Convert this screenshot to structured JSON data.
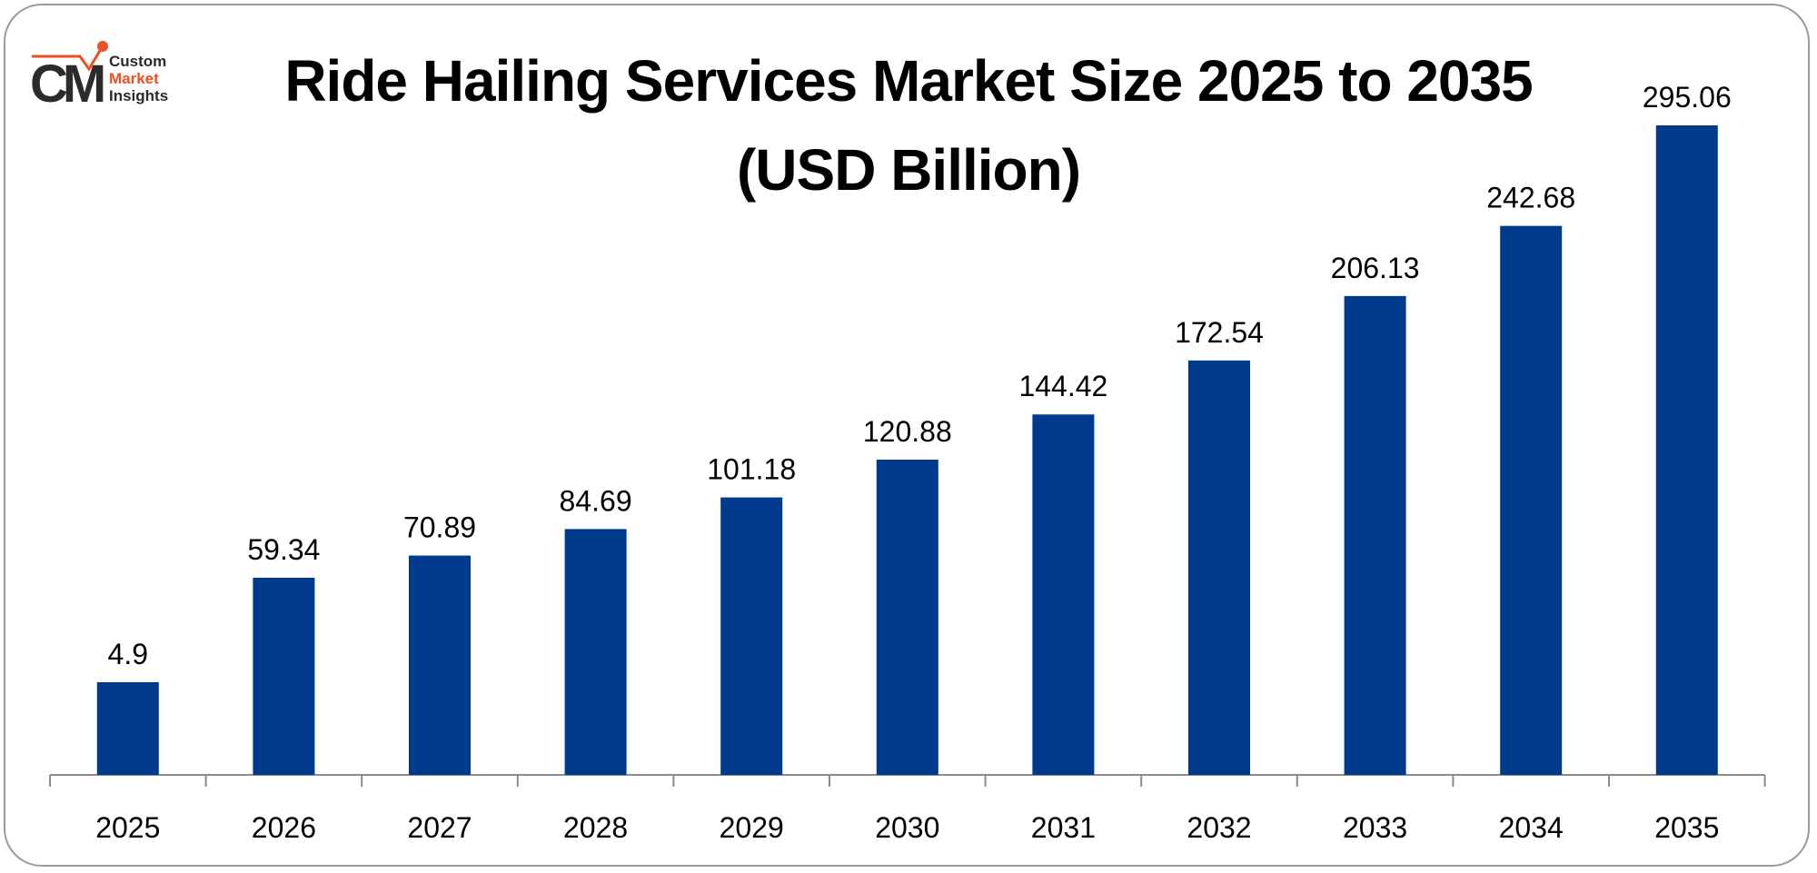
{
  "logo": {
    "line1": "Custom",
    "line2": "Market",
    "line3": "Insights",
    "mark": "CMI"
  },
  "chart_data": {
    "type": "bar",
    "title": "Ride Hailing Services Market Size 2025 to 2035",
    "subtitle": "(USD Billion)",
    "categories": [
      "2025",
      "2026",
      "2027",
      "2028",
      "2029",
      "2030",
      "2031",
      "2032",
      "2033",
      "2034",
      "2035"
    ],
    "values": [
      4.9,
      59.34,
      70.89,
      84.69,
      101.18,
      120.88,
      144.42,
      172.54,
      206.13,
      242.68,
      295.06
    ],
    "labels": [
      "4.9",
      "59.34",
      "70.89",
      "84.69",
      "101.18",
      "120.88",
      "144.42",
      "172.54",
      "206.13",
      "242.68",
      "295.06"
    ],
    "xlabel": "",
    "ylabel": "",
    "ylim": [
      -43.4,
      295.06
    ],
    "grid": false,
    "bar_color": "#003A8C"
  }
}
